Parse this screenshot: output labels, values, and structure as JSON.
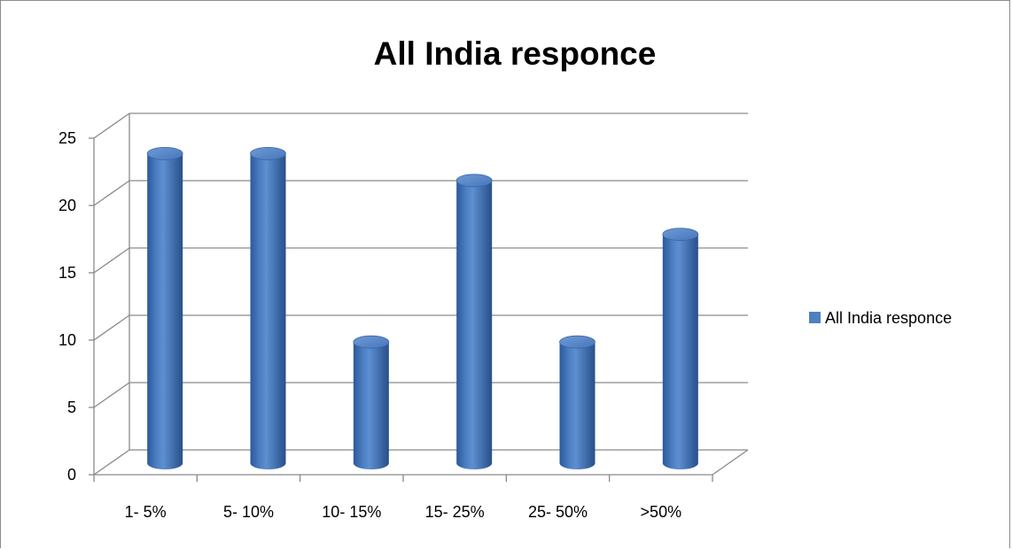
{
  "chart_data": {
    "type": "bar",
    "title": "All India responce",
    "xlabel": "",
    "ylabel": "",
    "categories": [
      "1- 5%",
      "5- 10%",
      "10- 15%",
      "15- 25%",
      "25- 50%",
      ">50%"
    ],
    "series": [
      {
        "name": "All India responce",
        "values": [
          23,
          23,
          9,
          21,
          9,
          17
        ],
        "color": "#4f81bd"
      }
    ],
    "ylim": [
      0,
      25
    ],
    "yticks": [
      0,
      5,
      10,
      15,
      20,
      25
    ],
    "grid": true,
    "legend_position": "right",
    "style": "3d-cylinder"
  }
}
